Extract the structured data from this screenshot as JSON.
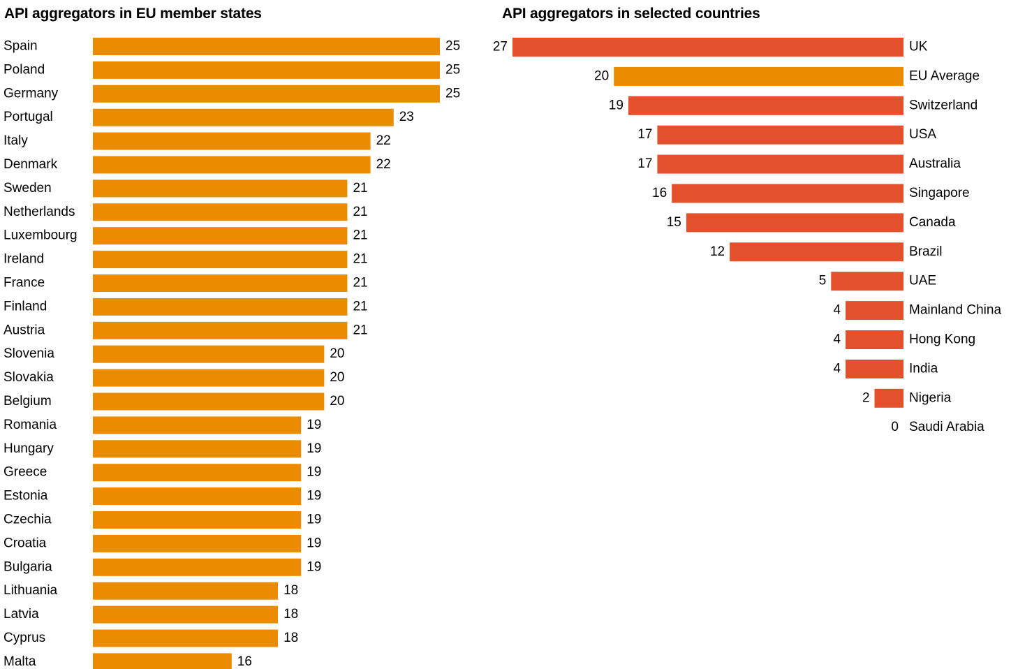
{
  "chart_data": [
    {
      "type": "bar",
      "orientation": "horizontal",
      "title": "API aggregators in EU member states",
      "categories": [
        "Spain",
        "Poland",
        "Germany",
        "Portugal",
        "Italy",
        "Denmark",
        "Sweden",
        "Netherlands",
        "Luxembourg",
        "Ireland",
        "France",
        "Finland",
        "Austria",
        "Slovenia",
        "Slovakia",
        "Belgium",
        "Romania",
        "Hungary",
        "Greece",
        "Estonia",
        "Czechia",
        "Croatia",
        "Bulgaria",
        "Lithuania",
        "Latvia",
        "Cyprus",
        "Malta"
      ],
      "values": [
        25,
        25,
        25,
        23,
        22,
        22,
        21,
        21,
        21,
        21,
        21,
        21,
        21,
        20,
        20,
        20,
        19,
        19,
        19,
        19,
        19,
        19,
        19,
        18,
        18,
        18,
        16
      ],
      "bar_color": "#EB8C00",
      "xlim": [
        10,
        25
      ],
      "grid": false,
      "data_labels": true
    },
    {
      "type": "bar",
      "orientation": "horizontal",
      "direction": "right-to-left",
      "title": "API aggregators in selected countries",
      "categories": [
        "UK",
        "EU Average",
        "Switzerland",
        "USA",
        "Australia",
        "Singapore",
        "Canada",
        "Brazil",
        "UAE",
        "Mainland China",
        "Hong Kong",
        "India",
        "Nigeria",
        "Saudi Arabia"
      ],
      "values": [
        27,
        20,
        19,
        17,
        17,
        16,
        15,
        12,
        5,
        4,
        4,
        4,
        2,
        0
      ],
      "bar_colors": [
        "#E4502B",
        "#EB8C00",
        "#E4502B",
        "#E4502B",
        "#E4502B",
        "#E4502B",
        "#E4502B",
        "#E4502B",
        "#E4502B",
        "#E4502B",
        "#E4502B",
        "#E4502B",
        "#E4502B",
        "#E4502B"
      ],
      "xlim": [
        0,
        27
      ],
      "grid": false,
      "data_labels": true
    }
  ]
}
